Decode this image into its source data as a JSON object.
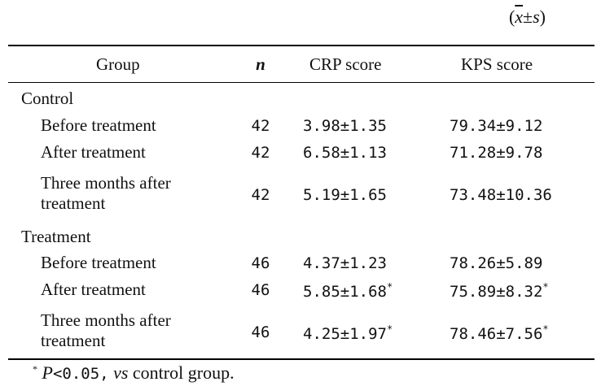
{
  "unit_note": {
    "open": "(",
    "xbar": "x",
    "pm": "±",
    "s": "s",
    "close": ")"
  },
  "headers": {
    "group": "Group",
    "n": "n",
    "crp": "CRP score",
    "kps": "KPS score"
  },
  "groups": [
    {
      "label": "Control",
      "rows": [
        {
          "label": "Before treatment",
          "n": "42",
          "crp": "3.98±1.35",
          "kps": "79.34±9.12",
          "crp_star": "",
          "kps_star": ""
        },
        {
          "label": "After treatment",
          "n": "42",
          "crp": "6.58±1.13",
          "kps": "71.28±9.78",
          "crp_star": "",
          "kps_star": ""
        },
        {
          "label": "Three months after treatment",
          "n": "42",
          "crp": "5.19±1.65",
          "kps": "73.48±10.36",
          "crp_star": "",
          "kps_star": ""
        }
      ]
    },
    {
      "label": "Treatment",
      "rows": [
        {
          "label": "Before treatment",
          "n": "46",
          "crp": "4.37±1.23",
          "kps": "78.26±5.89",
          "crp_star": "",
          "kps_star": ""
        },
        {
          "label": "After treatment",
          "n": "46",
          "crp": "5.85±1.68",
          "kps": "75.89±8.32",
          "crp_star": "*",
          "kps_star": "*"
        },
        {
          "label": "Three months after treatment",
          "n": "46",
          "crp": "4.25±1.97",
          "kps": "78.46±7.56",
          "crp_star": "*",
          "kps_star": "*"
        }
      ]
    }
  ],
  "footnote": {
    "star": "*",
    "p": "P",
    "rest": "<0.05,",
    "vs": "vs",
    "tail": "control group."
  }
}
